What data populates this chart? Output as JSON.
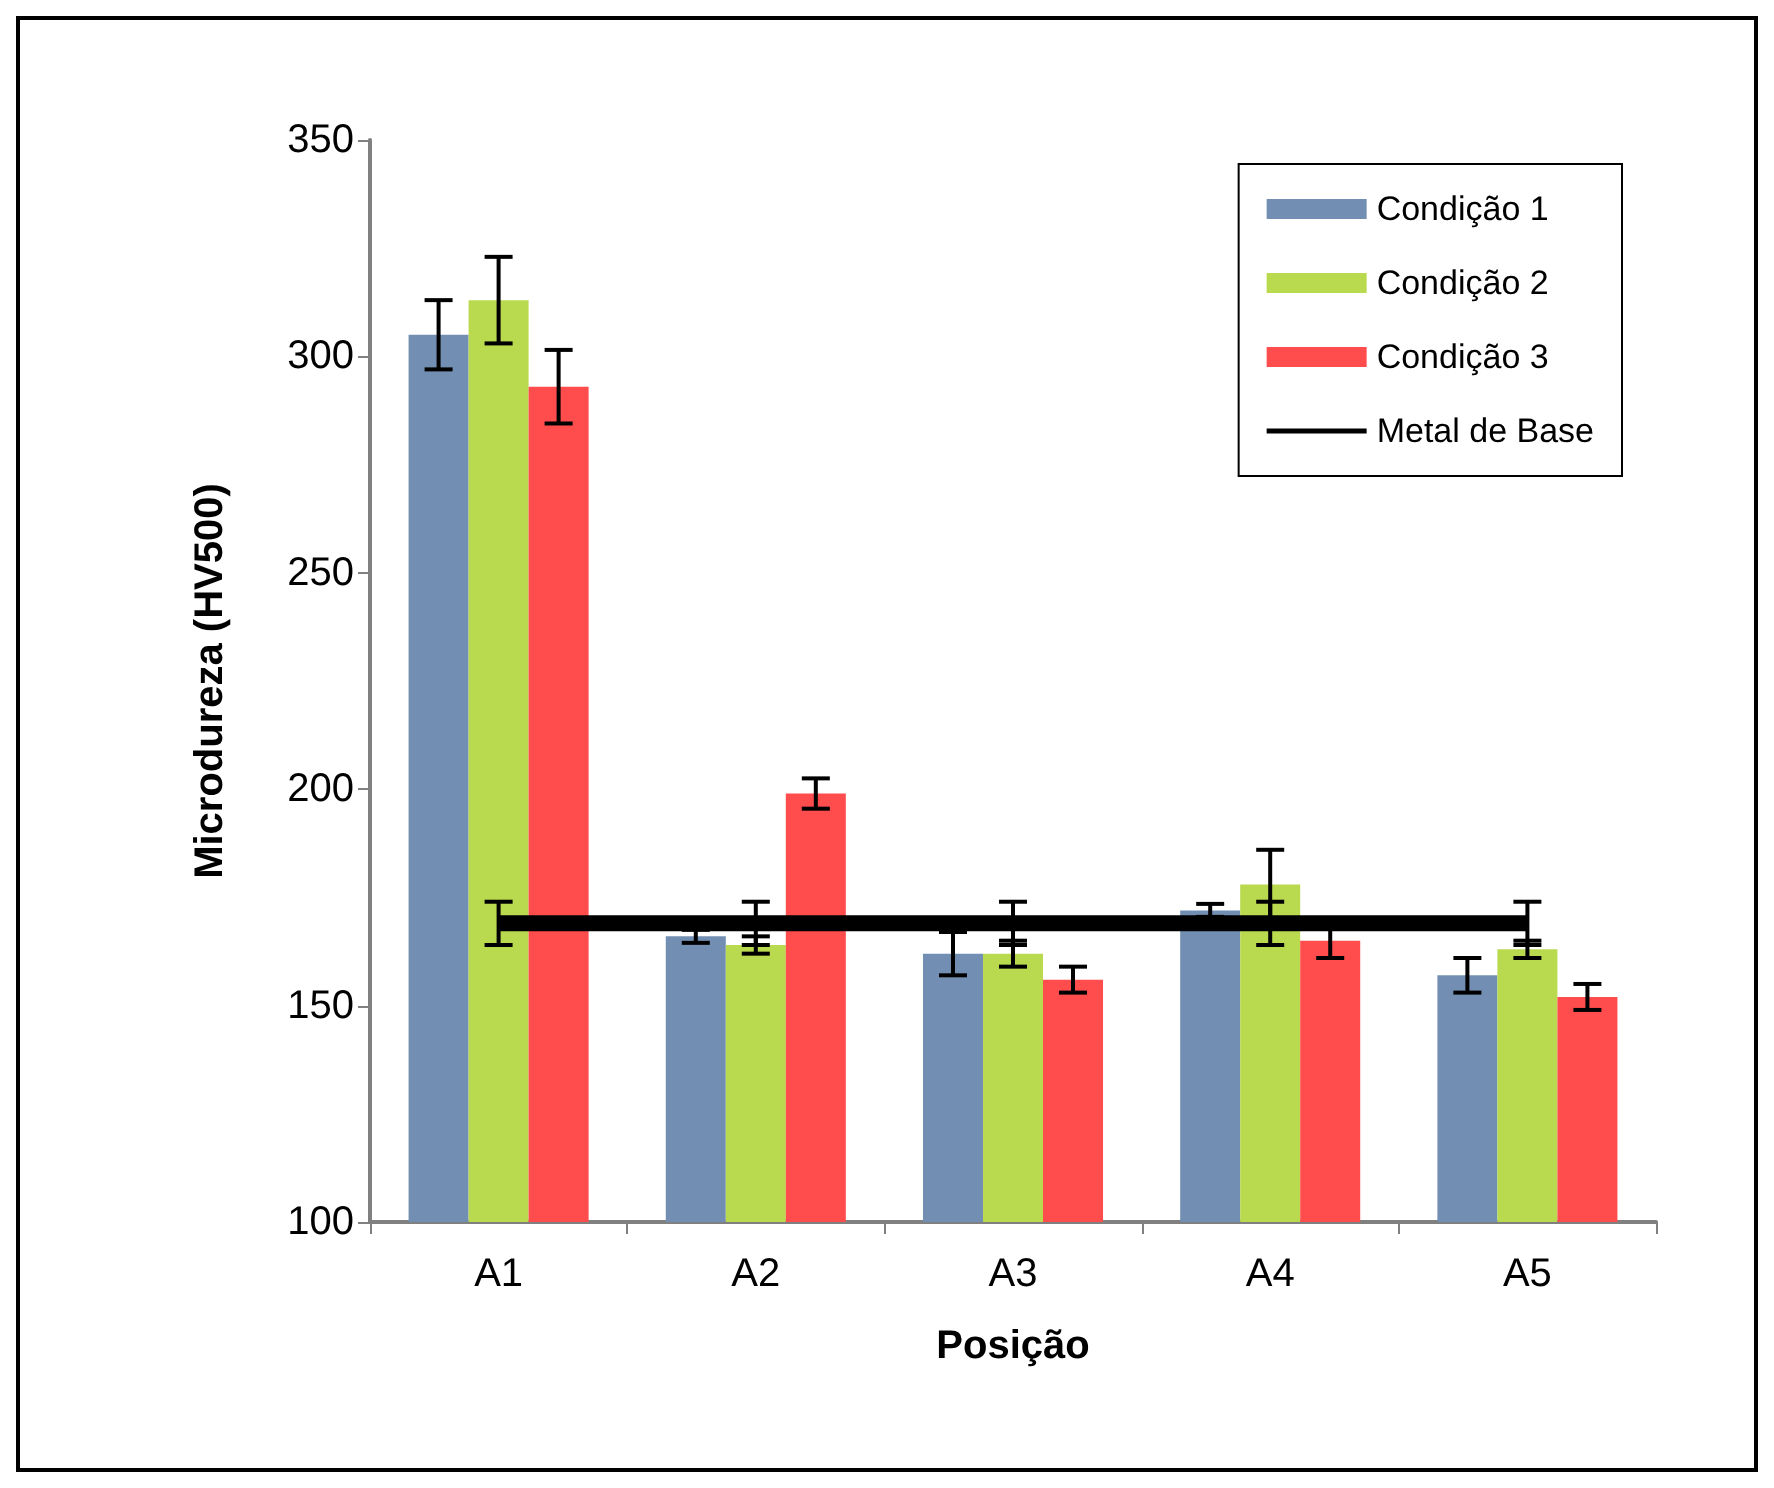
{
  "chart_data": {
    "type": "bar",
    "xlabel": "Posição",
    "ylabel": "Microdureza (HV500)",
    "categories": [
      "A1",
      "A2",
      "A3",
      "A4",
      "A5"
    ],
    "series": [
      {
        "name": "Condição 1",
        "color": "#728fb3",
        "values": [
          305,
          166,
          162,
          172,
          157
        ],
        "errors": [
          8,
          1.5,
          5,
          1.5,
          4
        ]
      },
      {
        "name": "Condição 2",
        "color": "#b9da4e",
        "values": [
          313,
          164,
          162,
          178,
          163
        ],
        "errors": [
          10,
          2,
          3,
          8,
          2
        ]
      },
      {
        "name": "Condição 3",
        "color": "#ff4d4d",
        "values": [
          293,
          199,
          156,
          165,
          152
        ],
        "errors": [
          8.5,
          3.5,
          3,
          4,
          3
        ]
      },
      {
        "name": "Metal de Base",
        "type": "line",
        "color": "#000000",
        "values": [
          169,
          169,
          169,
          169,
          169
        ],
        "errors": [
          5,
          5,
          5,
          5,
          5
        ],
        "marker": "none",
        "line_style": "solid"
      }
    ],
    "ylim": [
      100,
      350
    ],
    "yticks": [
      100,
      150,
      200,
      250,
      300,
      350
    ],
    "grid": false,
    "legend": "top right"
  }
}
